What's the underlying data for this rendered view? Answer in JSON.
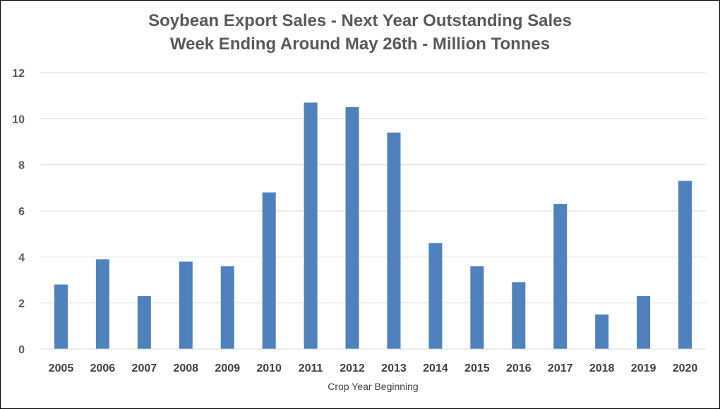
{
  "chart_data": {
    "type": "bar",
    "title": "Soybean Export Sales - Next Year Outstanding Sales",
    "subtitle": "Week Ending Around May 26th - Million Tonnes",
    "xlabel": "Crop Year Beginning",
    "ylabel": "",
    "ylim": [
      0,
      12
    ],
    "yticks": [
      0,
      2,
      4,
      6,
      8,
      10,
      12
    ],
    "grid": true,
    "legend": "none",
    "bar_color": "#4F81BD",
    "categories": [
      "2005",
      "2006",
      "2007",
      "2008",
      "2009",
      "2010",
      "2011",
      "2012",
      "2013",
      "2014",
      "2015",
      "2016",
      "2017",
      "2018",
      "2019",
      "2020"
    ],
    "values": [
      2.8,
      3.9,
      2.3,
      3.8,
      3.6,
      6.8,
      10.7,
      10.5,
      9.4,
      4.6,
      3.6,
      2.9,
      6.3,
      1.5,
      2.3,
      7.3
    ]
  }
}
